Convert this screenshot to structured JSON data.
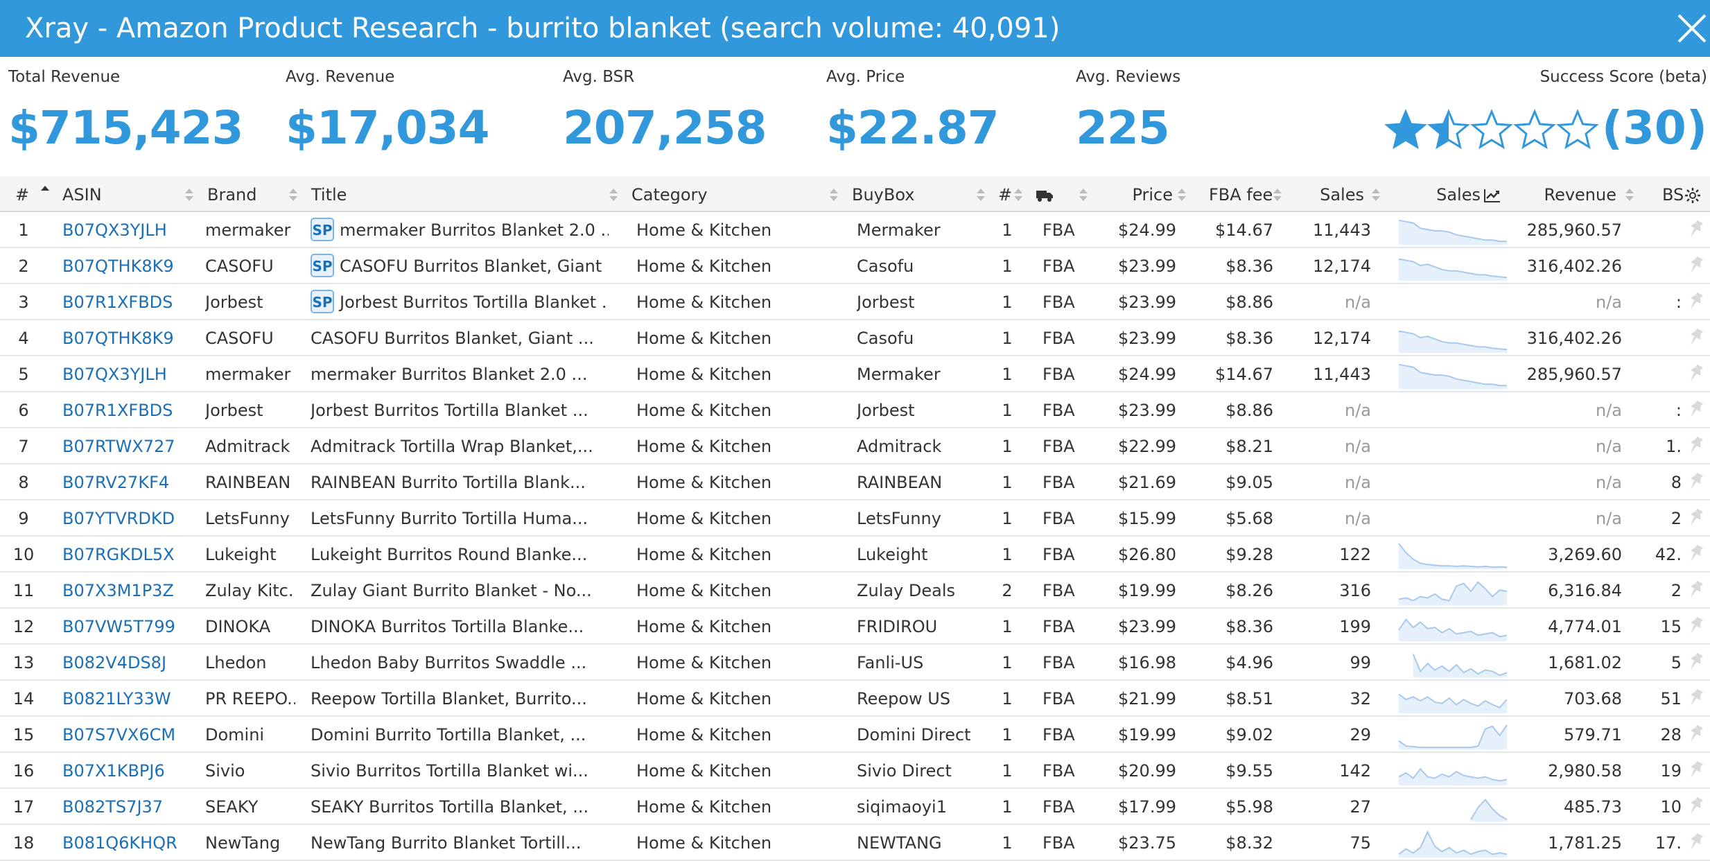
{
  "window": {
    "title": "Xray - Amazon Product Research - burrito blanket (search volume: 40,091)"
  },
  "stats": [
    {
      "label": "Total Revenue",
      "value": "$715,423"
    },
    {
      "label": "Avg. Revenue",
      "value": "$17,034"
    },
    {
      "label": "Avg. BSR",
      "value": "207,258"
    },
    {
      "label": "Avg. Price",
      "value": "$22.87"
    },
    {
      "label": "Avg. Reviews",
      "value": "225"
    }
  ],
  "success_score": {
    "label": "Success Score (beta)",
    "value": "(30)",
    "stars": 1.5,
    "max_stars": 5
  },
  "columns": {
    "num": "#",
    "asin": "ASIN",
    "brand": "Brand",
    "title": "Title",
    "category": "Category",
    "buybox": "BuyBox",
    "sellers": "#",
    "fulfillment_icon": "truck-icon",
    "price": "Price",
    "fba_fee": "FBA fee",
    "sales": "Sales",
    "sales_trend": "Sales",
    "revenue": "Revenue",
    "bsr": "BS"
  },
  "colors": {
    "accent": "#3198dc",
    "link": "#1a6fb6",
    "sparkline": "#a9c9ec",
    "sparkline_fill": "#e6f0fb"
  },
  "rows": [
    {
      "n": "1",
      "asin": "B07QX3YJLH",
      "brand": "mermaker",
      "sp": "SP",
      "title": "mermaker Burritos Blanket 2.0 ...",
      "category": "Home & Kitchen",
      "buybox": "Mermaker",
      "sellers": "1",
      "ful": "FBA",
      "price": "$24.99",
      "fee": "$14.67",
      "sales": "11,443",
      "revenue": "285,960.57",
      "bsr": "",
      "trend": [
        0.9,
        0.85,
        0.8,
        0.6,
        0.55,
        0.5,
        0.5,
        0.45,
        0.35,
        0.3,
        0.25,
        0.2,
        0.15,
        0.15,
        0.1,
        0.1
      ]
    },
    {
      "n": "2",
      "asin": "B07QTHK8K9",
      "brand": "CASOFU",
      "sp": "SP",
      "title": "CASOFU Burritos Blanket, Giant ...",
      "category": "Home & Kitchen",
      "buybox": "Casofu",
      "sellers": "1",
      "ful": "FBA",
      "price": "$23.99",
      "fee": "$8.36",
      "sales": "12,174",
      "revenue": "316,402.26",
      "bsr": "",
      "trend": [
        0.8,
        0.75,
        0.7,
        0.55,
        0.6,
        0.5,
        0.4,
        0.35,
        0.35,
        0.3,
        0.25,
        0.2,
        0.2,
        0.15,
        0.12,
        0.1
      ]
    },
    {
      "n": "3",
      "asin": "B07R1XFBDS",
      "brand": "Jorbest",
      "sp": "SP",
      "title": "Jorbest Burritos Tortilla Blanket ...",
      "category": "Home & Kitchen",
      "buybox": "Jorbest",
      "sellers": "1",
      "ful": "FBA",
      "price": "$23.99",
      "fee": "$8.86",
      "sales": "n/a",
      "revenue": "n/a",
      "bsr": ":",
      "trend": []
    },
    {
      "n": "4",
      "asin": "B07QTHK8K9",
      "brand": "CASOFU",
      "sp": "",
      "title": "CASOFU Burritos Blanket, Giant ...",
      "category": "Home & Kitchen",
      "buybox": "Casofu",
      "sellers": "1",
      "ful": "FBA",
      "price": "$23.99",
      "fee": "$8.36",
      "sales": "12,174",
      "revenue": "316,402.26",
      "bsr": "",
      "trend": [
        0.8,
        0.75,
        0.7,
        0.55,
        0.6,
        0.5,
        0.4,
        0.35,
        0.35,
        0.3,
        0.25,
        0.2,
        0.2,
        0.15,
        0.12,
        0.1
      ]
    },
    {
      "n": "5",
      "asin": "B07QX3YJLH",
      "brand": "mermaker",
      "sp": "",
      "title": "mermaker Burritos Blanket 2.0 ...",
      "category": "Home & Kitchen",
      "buybox": "Mermaker",
      "sellers": "1",
      "ful": "FBA",
      "price": "$24.99",
      "fee": "$14.67",
      "sales": "11,443",
      "revenue": "285,960.57",
      "bsr": "",
      "trend": [
        0.9,
        0.85,
        0.8,
        0.6,
        0.55,
        0.5,
        0.5,
        0.45,
        0.35,
        0.3,
        0.25,
        0.2,
        0.15,
        0.15,
        0.1,
        0.1
      ]
    },
    {
      "n": "6",
      "asin": "B07R1XFBDS",
      "brand": "Jorbest",
      "sp": "",
      "title": "Jorbest Burritos Tortilla Blanket ...",
      "category": "Home & Kitchen",
      "buybox": "Jorbest",
      "sellers": "1",
      "ful": "FBA",
      "price": "$23.99",
      "fee": "$8.86",
      "sales": "n/a",
      "revenue": "n/a",
      "bsr": ":",
      "trend": []
    },
    {
      "n": "7",
      "asin": "B07RTWX727",
      "brand": "Admitrack",
      "sp": "",
      "title": "Admitrack Tortilla Wrap Blanket,...",
      "category": "Home & Kitchen",
      "buybox": "Admitrack",
      "sellers": "1",
      "ful": "FBA",
      "price": "$22.99",
      "fee": "$8.21",
      "sales": "n/a",
      "revenue": "n/a",
      "bsr": "1.",
      "trend": []
    },
    {
      "n": "8",
      "asin": "B07RV27KF4",
      "brand": "RAINBEAN",
      "sp": "",
      "title": "RAINBEAN Burrito Tortilla Blank...",
      "category": "Home & Kitchen",
      "buybox": "RAINBEAN",
      "sellers": "1",
      "ful": "FBA",
      "price": "$21.69",
      "fee": "$9.05",
      "sales": "n/a",
      "revenue": "n/a",
      "bsr": "8",
      "trend": []
    },
    {
      "n": "9",
      "asin": "B07YTVRDKD",
      "brand": "LetsFunny",
      "sp": "",
      "title": "LetsFunny Burrito Tortilla Huma...",
      "category": "Home & Kitchen",
      "buybox": "LetsFunny",
      "sellers": "1",
      "ful": "FBA",
      "price": "$15.99",
      "fee": "$5.68",
      "sales": "n/a",
      "revenue": "n/a",
      "bsr": "2",
      "trend": []
    },
    {
      "n": "10",
      "asin": "B07RGKDL5X",
      "brand": "Lukeight",
      "sp": "",
      "title": "Lukeight Burritos Round Blanke...",
      "category": "Home & Kitchen",
      "buybox": "Lukeight",
      "sellers": "1",
      "ful": "FBA",
      "price": "$26.80",
      "fee": "$9.28",
      "sales": "122",
      "revenue": "3,269.60",
      "bsr": "42.",
      "trend": [
        0.95,
        0.6,
        0.35,
        0.2,
        0.15,
        0.12,
        0.1,
        0.1,
        0.08,
        0.1,
        0.08,
        0.06,
        0.08,
        0.05,
        0.06,
        0.05
      ]
    },
    {
      "n": "11",
      "asin": "B07X3M1P3Z",
      "brand": "Zulay Kitc...",
      "sp": "",
      "title": "Zulay Giant Burrito Blanket - No...",
      "category": "Home & Kitchen",
      "buybox": "Zulay Deals",
      "sellers": "2",
      "ful": "FBA",
      "price": "$19.99",
      "fee": "$8.26",
      "sales": "316",
      "revenue": "6,316.84",
      "bsr": "2",
      "trend": [
        0.2,
        0.25,
        0.15,
        0.3,
        0.25,
        0.4,
        0.2,
        0.15,
        0.7,
        0.8,
        0.5,
        0.85,
        0.6,
        0.3,
        0.55,
        0.5
      ]
    },
    {
      "n": "12",
      "asin": "B07VW5T799",
      "brand": "DINOKA",
      "sp": "",
      "title": "DINOKA Burritos Tortilla Blanke...",
      "category": "Home & Kitchen",
      "buybox": "FRIDIROU",
      "sellers": "1",
      "ful": "FBA",
      "price": "$23.99",
      "fee": "$8.36",
      "sales": "199",
      "revenue": "4,774.01",
      "bsr": "15",
      "trend": [
        0.4,
        0.8,
        0.5,
        0.7,
        0.45,
        0.5,
        0.3,
        0.45,
        0.25,
        0.3,
        0.35,
        0.2,
        0.25,
        0.3,
        0.15,
        0.2
      ]
    },
    {
      "n": "13",
      "asin": "B082V4DS8J",
      "brand": "Lhedon",
      "sp": "",
      "title": "Lhedon Baby Burritos Swaddle ...",
      "category": "Home & Kitchen",
      "buybox": "Fanli-US",
      "sellers": "1",
      "ful": "FBA",
      "price": "$16.98",
      "fee": "$4.96",
      "sales": "99",
      "revenue": "1,681.02",
      "bsr": "5",
      "trend": [
        null,
        null,
        0.85,
        0.2,
        0.5,
        0.25,
        0.4,
        0.2,
        0.45,
        0.15,
        0.3,
        0.1,
        0.25,
        0.2,
        0.05,
        0.15
      ]
    },
    {
      "n": "14",
      "asin": "B0821LY33W",
      "brand": "PR REEPO...",
      "sp": "",
      "title": "Reepow Tortilla Blanket, Burrito...",
      "category": "Home & Kitchen",
      "buybox": "Reepow US",
      "sellers": "1",
      "ful": "FBA",
      "price": "$21.99",
      "fee": "$8.51",
      "sales": "32",
      "revenue": "703.68",
      "bsr": "51",
      "trend": [
        0.7,
        0.5,
        0.6,
        0.45,
        0.6,
        0.4,
        0.35,
        0.55,
        0.3,
        0.5,
        0.35,
        0.25,
        0.45,
        0.3,
        0.2,
        0.5
      ]
    },
    {
      "n": "15",
      "asin": "B07S7VX6CM",
      "brand": "Domini",
      "sp": "",
      "title": "Domini Burrito Tortilla Blanket, ...",
      "category": "Home & Kitchen",
      "buybox": "Domini Direct",
      "sellers": "1",
      "ful": "FBA",
      "price": "$19.99",
      "fee": "$9.02",
      "sales": "29",
      "revenue": "579.71",
      "bsr": "28",
      "trend": [
        0.3,
        0.1,
        0.08,
        0.05,
        0.05,
        0.05,
        0.05,
        0.05,
        0.05,
        0.05,
        0.05,
        0.1,
        0.75,
        0.85,
        0.5,
        0.9
      ]
    },
    {
      "n": "16",
      "asin": "B07X1KBPJ6",
      "brand": "Sivio",
      "sp": "",
      "title": "Sivio Burritos Tortilla Blanket wi...",
      "category": "Home & Kitchen",
      "buybox": "Sivio Direct",
      "sellers": "1",
      "ful": "FBA",
      "price": "$20.99",
      "fee": "$9.55",
      "sales": "142",
      "revenue": "2,980.58",
      "bsr": "19",
      "trend": [
        0.3,
        0.45,
        0.25,
        0.6,
        0.3,
        0.25,
        0.4,
        0.3,
        0.5,
        0.35,
        0.3,
        0.25,
        0.3,
        0.2,
        0.15,
        0.2
      ]
    },
    {
      "n": "17",
      "asin": "B082TS7J37",
      "brand": "SEAKY",
      "sp": "",
      "title": "SEAKY Burritos Tortilla Blanket, ...",
      "category": "Home & Kitchen",
      "buybox": "siqimaoyi1",
      "sellers": "1",
      "ful": "FBA",
      "price": "$17.99",
      "fee": "$5.98",
      "sales": "27",
      "revenue": "485.73",
      "bsr": "10",
      "trend": [
        null,
        null,
        null,
        null,
        null,
        null,
        null,
        null,
        null,
        null,
        0.05,
        0.5,
        0.8,
        0.45,
        0.2,
        0.05
      ]
    },
    {
      "n": "18",
      "asin": "B081Q6KHQR",
      "brand": "NewTang",
      "sp": "",
      "title": "NewTang Burrito Blanket Tortill...",
      "category": "Home & Kitchen",
      "buybox": "NEWTANG",
      "sellers": "1",
      "ful": "FBA",
      "price": "$23.75",
      "fee": "$8.32",
      "sales": "75",
      "revenue": "1,781.25",
      "bsr": "17.",
      "trend": [
        0.1,
        0.3,
        0.15,
        0.35,
        0.95,
        0.4,
        0.2,
        0.35,
        0.15,
        0.25,
        0.1,
        0.2,
        0.25,
        0.1,
        0.15,
        0.1
      ]
    }
  ]
}
